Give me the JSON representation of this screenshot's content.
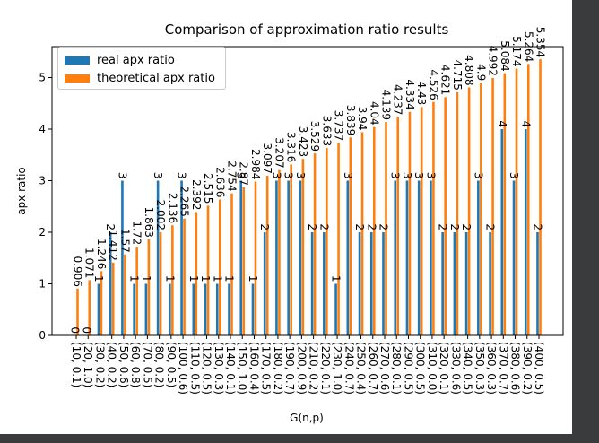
{
  "chart_data": {
    "type": "bar",
    "title": "Comparison of approximation ratio results",
    "xlabel": "G(n,p)",
    "ylabel": "apx ratio",
    "ylim": [
      0,
      5.6
    ],
    "yticks": [
      0,
      1,
      2,
      3,
      4,
      5
    ],
    "grid": false,
    "legend": "top-left",
    "categories": [
      "(10, 0.1)",
      "(20, 1.0)",
      "(30, 0.2)",
      "(40, 0.2)",
      "(50, 0.6)",
      "(60, 0.8)",
      "(70, 0.5)",
      "(80, 0.2)",
      "(90, 0.5)",
      "(100, 0.6)",
      "(110, 0.5)",
      "(120, 0.5)",
      "(130, 0.3)",
      "(140, 0.1)",
      "(150, 1.0)",
      "(160, 0.4)",
      "(170, 0.5)",
      "(180, 0.2)",
      "(190, 0.7)",
      "(200, 0.9)",
      "(210, 0.2)",
      "(220, 0.1)",
      "(230, 1.0)",
      "(240, 0.7)",
      "(250, 0.4)",
      "(260, 0.7)",
      "(270, 0.6)",
      "(280, 0.1)",
      "(290, 0.5)",
      "(300, 0.5)",
      "(310, 0.0)",
      "(320, 0.1)",
      "(330, 0.6)",
      "(340, 0.5)",
      "(350, 0.3)",
      "(360, 0.3)",
      "(370, 0.7)",
      "(380, 0.6)",
      "(390, 0.2)",
      "(400, 0.5)"
    ],
    "series": [
      {
        "name": "real apx ratio",
        "color": "#1f77b4",
        "values": [
          0,
          0,
          1,
          2,
          3,
          1,
          1,
          3,
          1,
          3,
          1,
          1,
          1,
          1,
          3,
          1,
          2,
          3,
          3,
          3,
          2,
          2,
          1,
          3,
          2,
          2,
          2,
          3,
          3,
          3,
          3,
          2,
          2,
          2,
          3,
          2,
          4,
          3,
          4,
          2
        ],
        "labels": [
          "0",
          "0",
          "1",
          "2",
          "3",
          "1",
          "1",
          "3",
          "1",
          "3",
          "1",
          "1",
          "1",
          "1",
          "3",
          "1",
          "2",
          "3",
          "3",
          "3",
          "2",
          "2",
          "1",
          "3",
          "2",
          "2",
          "2",
          "3",
          "3",
          "3",
          "3",
          "2",
          "2",
          "2",
          "3",
          "2",
          "4",
          "3",
          "4",
          "2"
        ]
      },
      {
        "name": "theoretical apx ratio",
        "color": "#ff7f0e",
        "values": [
          0.906,
          1.071,
          1.246,
          1.412,
          1.57,
          1.72,
          1.863,
          2.002,
          2.136,
          2.265,
          2.392,
          2.515,
          2.636,
          2.754,
          2.87,
          2.984,
          3.097,
          3.207,
          3.316,
          3.423,
          3.529,
          3.633,
          3.737,
          3.839,
          3.94,
          4.04,
          4.139,
          4.237,
          4.334,
          4.43,
          4.526,
          4.621,
          4.715,
          4.808,
          4.9,
          4.992,
          5.084,
          5.174,
          5.264,
          5.354
        ],
        "labels": [
          "0.906",
          "1.071",
          "1.246",
          "1.412",
          "1.57",
          "1.72",
          "1.863",
          "2.002",
          "2.136",
          "2.265",
          "2.392",
          "2.515",
          "2.636",
          "2.754",
          "2.87",
          "2.984",
          "3.097",
          "3.207",
          "3.316",
          "3.423",
          "3.529",
          "3.633",
          "3.737",
          "3.839",
          "3.94",
          "4.04",
          "4.139",
          "4.237",
          "4.334",
          "4.43",
          "4.526",
          "4.621",
          "4.715",
          "4.808",
          "4.9",
          "4.992",
          "5.084",
          "5.174",
          "5.264",
          "5.354"
        ]
      }
    ]
  }
}
